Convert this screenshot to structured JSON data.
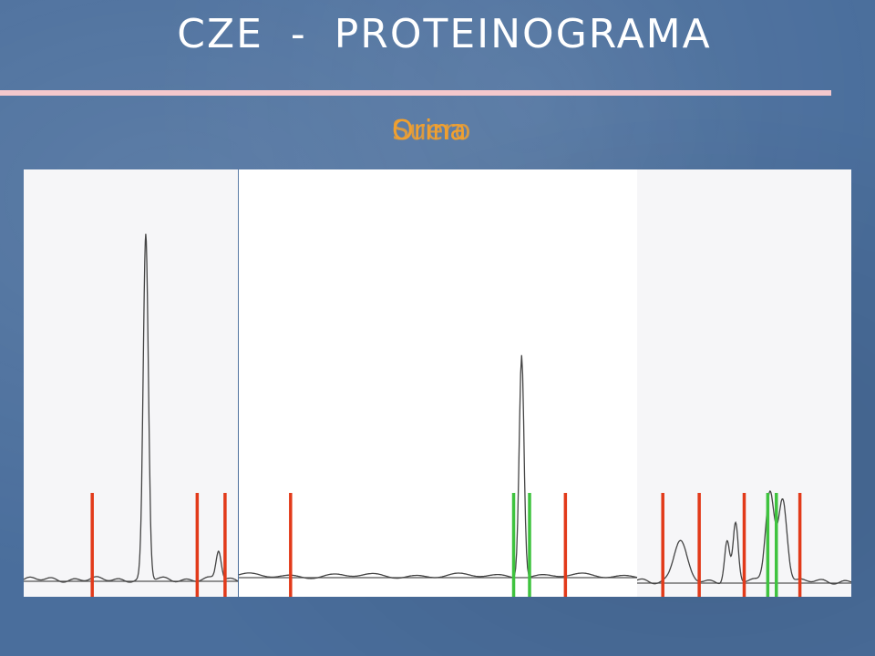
{
  "title": "CZE   -   PROTEINOGRAMA",
  "labels": [
    "Suero",
    "Orina"
  ],
  "colors": {
    "background": "#4a6e9c",
    "rule": "#f4c8cc",
    "label": "#f0a030",
    "trace": "#444444",
    "red_marker": "#e23a1a",
    "green_marker": "#3fc33f"
  },
  "chart_data": {
    "type": "line",
    "panels": [
      {
        "name": "left-electropherogram",
        "peaks": [
          {
            "x": 0.57,
            "height": 0.84,
            "width": 0.012
          },
          {
            "x": 0.91,
            "height": 0.07,
            "width": 0.012
          }
        ],
        "markers": [
          {
            "x": 0.32,
            "color": "red"
          },
          {
            "x": 0.81,
            "color": "red"
          },
          {
            "x": 0.94,
            "color": "red"
          }
        ]
      },
      {
        "name": "center-electropherogram",
        "peaks": [
          {
            "x": 0.71,
            "height": 0.55,
            "width": 0.006
          }
        ],
        "markers": [
          {
            "x": 0.13,
            "color": "red"
          },
          {
            "x": 0.69,
            "color": "green"
          },
          {
            "x": 0.73,
            "color": "green"
          },
          {
            "x": 0.82,
            "color": "red"
          }
        ]
      },
      {
        "name": "right-electropherogram",
        "peaks": [
          {
            "x": 0.2,
            "height": 0.1,
            "width": 0.03
          },
          {
            "x": 0.42,
            "height": 0.1,
            "width": 0.012
          },
          {
            "x": 0.46,
            "height": 0.14,
            "width": 0.012
          },
          {
            "x": 0.62,
            "height": 0.22,
            "width": 0.02
          },
          {
            "x": 0.68,
            "height": 0.2,
            "width": 0.02
          }
        ],
        "markers": [
          {
            "x": 0.12,
            "color": "red"
          },
          {
            "x": 0.29,
            "color": "red"
          },
          {
            "x": 0.5,
            "color": "red"
          },
          {
            "x": 0.61,
            "color": "green"
          },
          {
            "x": 0.65,
            "color": "green"
          },
          {
            "x": 0.76,
            "color": "red"
          }
        ]
      }
    ]
  }
}
